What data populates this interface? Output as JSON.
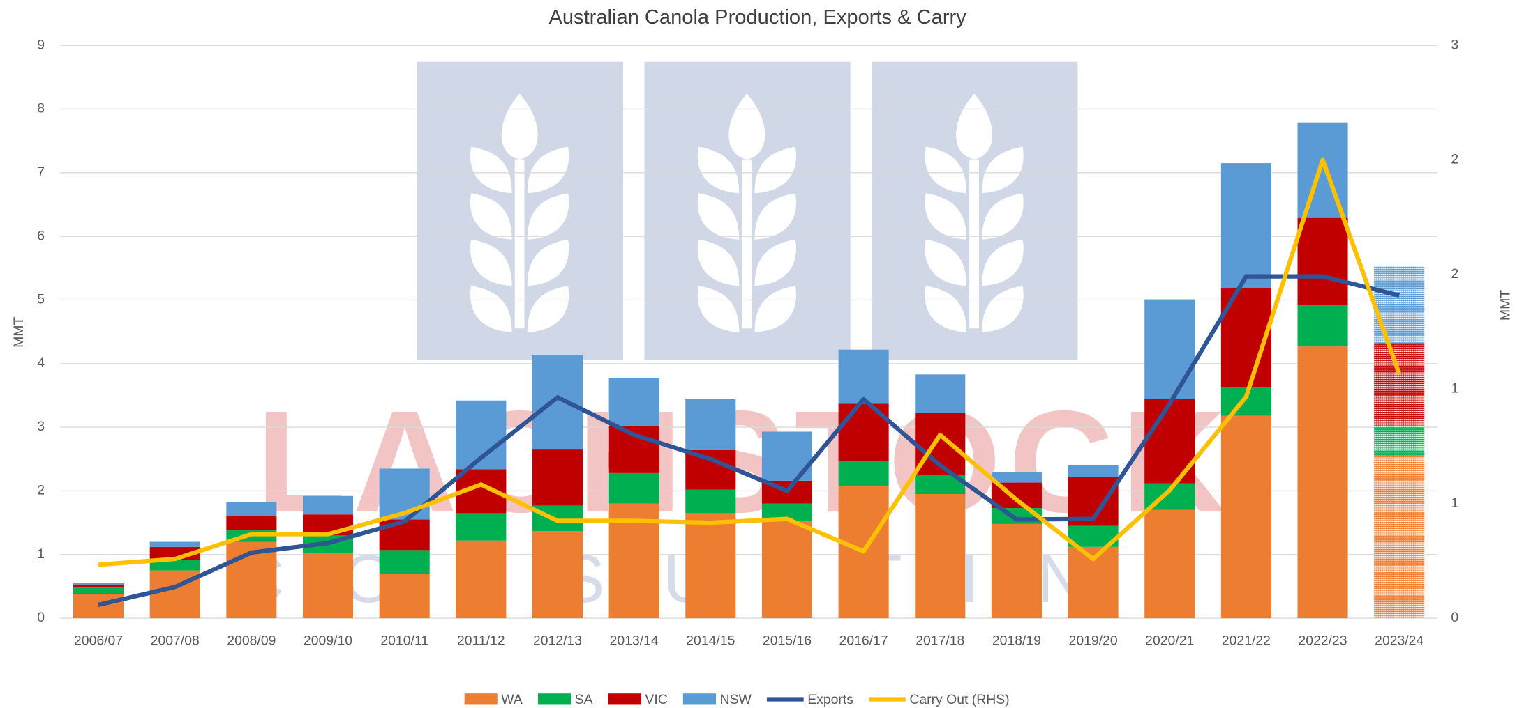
{
  "chart_data": {
    "type": "bar",
    "title": "Australian Canola Production, Exports & Carry",
    "categories": [
      "2006/07",
      "2007/08",
      "2008/09",
      "2009/10",
      "2010/11",
      "2011/12",
      "2012/13",
      "2013/14",
      "2014/15",
      "2015/16",
      "2016/17",
      "2017/18",
      "2018/19",
      "2019/20",
      "2020/21",
      "2021/22",
      "2022/23",
      "2023/24"
    ],
    "series": [
      {
        "name": "WA",
        "color": "#ed7d31",
        "values": [
          0.38,
          0.75,
          1.2,
          1.03,
          0.7,
          1.22,
          1.37,
          1.8,
          1.65,
          1.52,
          2.07,
          1.95,
          1.48,
          1.12,
          1.7,
          3.18,
          4.27,
          2.55
        ]
      },
      {
        "name": "SA",
        "color": "#00b050",
        "values": [
          0.1,
          0.17,
          0.18,
          0.27,
          0.37,
          0.43,
          0.4,
          0.48,
          0.37,
          0.28,
          0.4,
          0.3,
          0.25,
          0.33,
          0.42,
          0.45,
          0.65,
          0.47
        ]
      },
      {
        "name": "VIC",
        "color": "#c00000",
        "values": [
          0.05,
          0.2,
          0.22,
          0.33,
          0.48,
          0.69,
          0.88,
          0.74,
          0.62,
          0.36,
          0.9,
          0.98,
          0.4,
          0.77,
          1.32,
          1.55,
          1.37,
          1.3
        ]
      },
      {
        "name": "NSW",
        "color": "#5b9bd5",
        "values": [
          0.03,
          0.08,
          0.23,
          0.29,
          0.8,
          1.08,
          1.49,
          0.75,
          0.8,
          0.77,
          0.85,
          0.6,
          0.17,
          0.18,
          1.57,
          1.97,
          1.5,
          1.21
        ]
      },
      {
        "name": "Exports",
        "type": "line",
        "color": "#2f5597",
        "values": [
          0.21,
          0.49,
          1.03,
          1.18,
          1.52,
          2.52,
          3.47,
          2.88,
          2.5,
          2.0,
          3.44,
          2.4,
          1.55,
          1.56,
          3.37,
          5.37,
          5.37,
          5.07
        ]
      },
      {
        "name": "Carry Out (RHS)",
        "type": "line",
        "axis": "y2",
        "color": "#ffc000",
        "values": [
          0.28,
          0.31,
          0.44,
          0.44,
          0.55,
          0.7,
          0.51,
          0.51,
          0.5,
          0.52,
          0.35,
          0.96,
          0.62,
          0.31,
          0.67,
          1.16,
          2.4,
          1.28
        ]
      }
    ],
    "stacked": true,
    "hatch_last": true,
    "ylabel": "MMT",
    "y2label": "MMT",
    "ylim": [
      0,
      9
    ],
    "yticks": [
      0,
      1,
      2,
      3,
      4,
      5,
      6,
      7,
      8,
      9
    ],
    "y2lim": [
      0,
      3
    ],
    "y2ticks": [
      0,
      {
        "value": 0.6,
        "label": "1"
      },
      {
        "value": 1.2,
        "label": "1"
      },
      {
        "value": 1.8,
        "label": "2"
      },
      {
        "value": 2.4,
        "label": "2"
      },
      3
    ],
    "grid": true,
    "legend": "bottom",
    "watermark": "LACHSTOCK",
    "watermark_subtitle": "CONSULTING"
  }
}
